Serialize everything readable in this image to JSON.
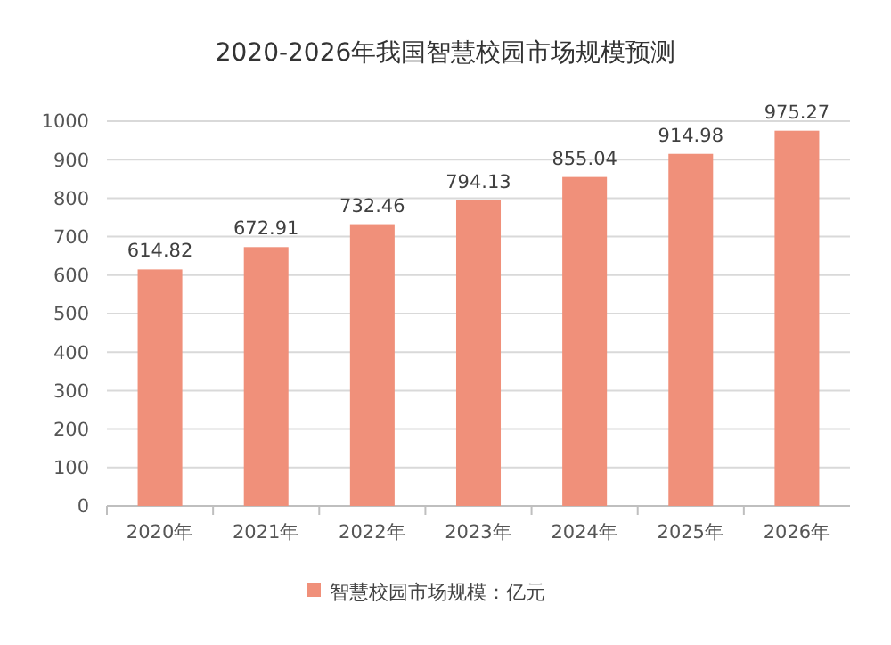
{
  "chart_data": {
    "type": "bar",
    "title": "2020-2026年我国智慧校园市场规模预测",
    "categories": [
      "2020年",
      "2021年",
      "2022年",
      "2023年",
      "2024年",
      "2025年",
      "2026年"
    ],
    "series": [
      {
        "name": "智慧校园市场规模：亿元",
        "color": "#f0907a",
        "values": [
          614.82,
          672.91,
          732.46,
          794.13,
          855.04,
          914.98,
          975.27
        ]
      }
    ],
    "ylim": [
      0,
      1000
    ],
    "yticks": [
      0,
      100,
      200,
      300,
      400,
      500,
      600,
      700,
      800,
      900,
      1000
    ],
    "grid": "y",
    "data_labels": true,
    "legend": "bottom"
  }
}
